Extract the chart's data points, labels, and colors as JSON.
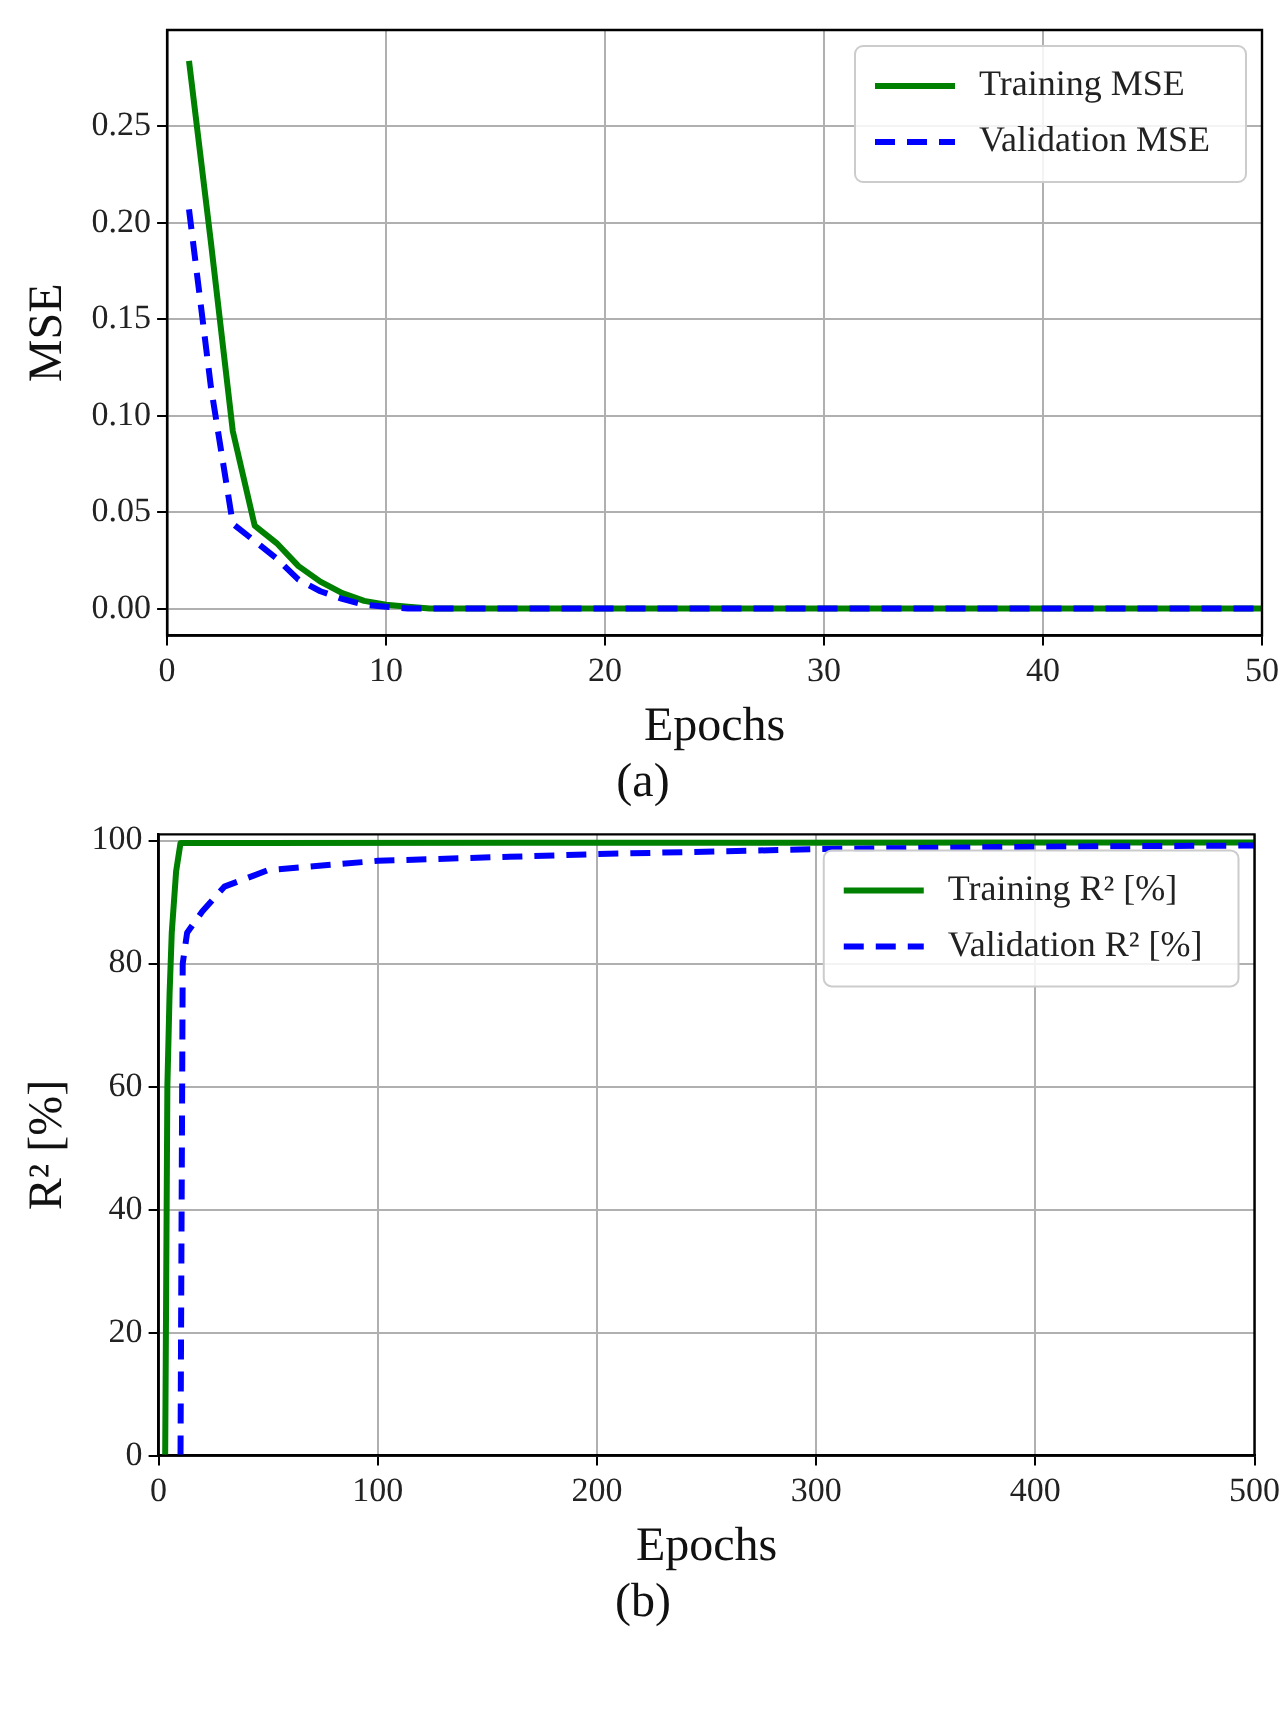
{
  "chart_data": [
    {
      "type": "line",
      "xlabel": "Epochs",
      "ylabel": "MSE",
      "annotations": [
        "(a)"
      ],
      "xlim": [
        0,
        50
      ],
      "ylim": [
        -0.014,
        0.3
      ],
      "xticks": [
        0,
        10,
        20,
        30,
        40,
        50
      ],
      "yticks": [
        {
          "value": 0,
          "label": "0.00"
        },
        {
          "value": 0.05,
          "label": "0.05"
        },
        {
          "value": 0.1,
          "label": "0.10"
        },
        {
          "value": 0.15,
          "label": "0.15"
        },
        {
          "value": 0.2,
          "label": "0.20"
        },
        {
          "value": 0.25,
          "label": "0.25"
        }
      ],
      "grid": true,
      "legend": "top right",
      "marker": "none",
      "series": [
        {
          "name": "Training MSE",
          "color": "#008000",
          "line_style": "solid",
          "x": [
            1,
            2,
            3,
            4,
            5,
            6,
            7,
            8,
            9,
            10,
            11,
            12,
            50
          ],
          "values": [
            0.284,
            0.19,
            0.092,
            0.043,
            0.034,
            0.022,
            0.014,
            0.008,
            0.004,
            0.002,
            0.001,
            0,
            0
          ]
        },
        {
          "name": "Validation MSE",
          "color": "#0000ff",
          "line_style": "dashed",
          "x": [
            1,
            2,
            3,
            4,
            5,
            6,
            7,
            8,
            9,
            10,
            11,
            12,
            50
          ],
          "values": [
            0.207,
            0.115,
            0.044,
            0.035,
            0.026,
            0.015,
            0.009,
            0.005,
            0.002,
            0.001,
            0,
            0,
            0
          ]
        }
      ]
    },
    {
      "type": "line",
      "xlabel": "Epochs",
      "ylabel": "R² [%]",
      "annotations": [
        "(b)"
      ],
      "xlim": [
        0,
        500
      ],
      "ylim": [
        0,
        101
      ],
      "xticks": [
        0,
        100,
        200,
        300,
        400,
        500
      ],
      "yticks": [
        0,
        20,
        40,
        60,
        80,
        100
      ],
      "grid": true,
      "legend": "top right",
      "marker": "none",
      "series": [
        {
          "name": "Training R² [%]",
          "color": "#008000",
          "line_style": "solid",
          "x": [
            3,
            4,
            5,
            6,
            8,
            10,
            500
          ],
          "values": [
            0,
            60,
            75,
            85,
            95,
            99.6,
            99.7
          ]
        },
        {
          "name": "Validation R² [%]",
          "color": "#0000ff",
          "line_style": "dashed",
          "x": [
            10,
            11,
            13,
            20,
            30,
            50,
            100,
            200,
            300,
            400,
            500
          ],
          "values": [
            0,
            80,
            85,
            88.5,
            92.5,
            95.2,
            96.7,
            97.8,
            98.6,
            99,
            99.2
          ]
        }
      ]
    }
  ]
}
